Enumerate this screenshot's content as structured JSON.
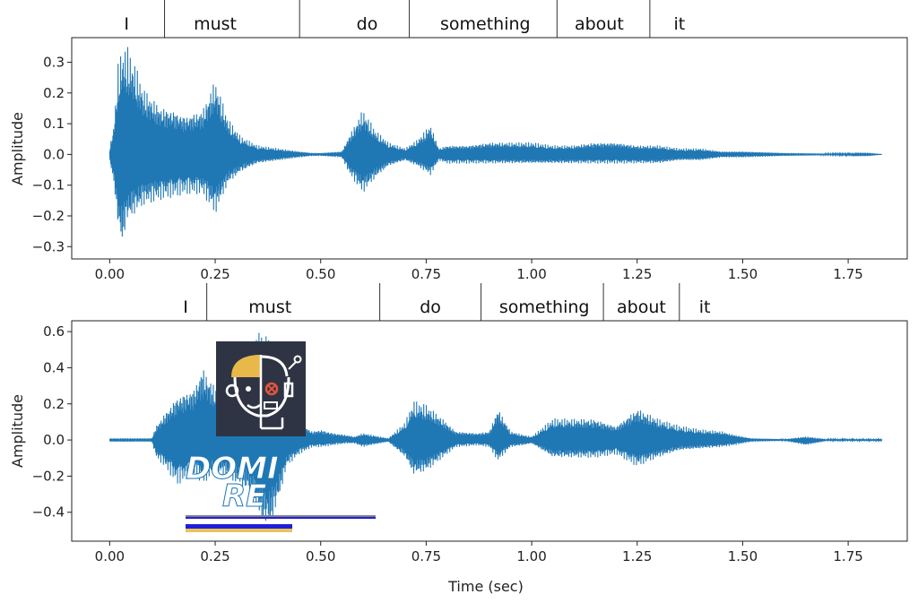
{
  "chart_data": [
    {
      "type": "line",
      "panel": "top",
      "xlabel": "",
      "ylabel": "Amplitude",
      "xlim": [
        -0.09,
        1.89
      ],
      "ylim": [
        -0.34,
        0.38
      ],
      "xticks": [
        0.0,
        0.25,
        0.5,
        0.75,
        1.0,
        1.25,
        1.5,
        1.75
      ],
      "xtick_labels": [
        "0.00",
        "0.25",
        "0.50",
        "0.75",
        "1.00",
        "1.25",
        "1.50",
        "1.75"
      ],
      "yticks": [
        -0.3,
        -0.2,
        -0.1,
        0.0,
        0.1,
        0.2,
        0.3
      ],
      "ytick_labels": [
        "−0.3",
        "−0.2",
        "−0.1",
        "0.0",
        "0.1",
        "0.2",
        "0.3"
      ],
      "color": "#1f77b4",
      "grid": false,
      "word_boundaries": [
        0.13,
        0.45,
        0.71,
        1.06,
        1.28
      ],
      "words": [
        {
          "text": "I",
          "center": 0.04
        },
        {
          "text": "must",
          "center": 0.25
        },
        {
          "text": "do",
          "center": 0.61
        },
        {
          "text": "something",
          "center": 0.89
        },
        {
          "text": "about",
          "center": 1.16
        },
        {
          "text": "it",
          "center": 1.35
        }
      ],
      "envelope": {
        "x": [
          0.0,
          0.01,
          0.02,
          0.03,
          0.04,
          0.06,
          0.08,
          0.1,
          0.12,
          0.15,
          0.18,
          0.22,
          0.25,
          0.28,
          0.31,
          0.35,
          0.4,
          0.45,
          0.48,
          0.5,
          0.55,
          0.57,
          0.6,
          0.63,
          0.66,
          0.7,
          0.73,
          0.76,
          0.78,
          0.8,
          0.85,
          0.9,
          0.95,
          1.0,
          1.05,
          1.1,
          1.15,
          1.2,
          1.25,
          1.3,
          1.35,
          1.4,
          1.45,
          1.5,
          1.6,
          1.7,
          1.8,
          1.83
        ],
        "upper": [
          0.02,
          0.1,
          0.3,
          0.35,
          0.36,
          0.3,
          0.22,
          0.19,
          0.16,
          0.15,
          0.13,
          0.15,
          0.25,
          0.12,
          0.06,
          0.03,
          0.02,
          0.01,
          0.005,
          0.005,
          0.01,
          0.07,
          0.15,
          0.08,
          0.04,
          0.02,
          0.05,
          0.1,
          0.02,
          0.03,
          0.03,
          0.04,
          0.04,
          0.04,
          0.03,
          0.03,
          0.04,
          0.04,
          0.03,
          0.03,
          0.02,
          0.02,
          0.01,
          0.01,
          0.005,
          0.003,
          0.002,
          0.0
        ],
        "lower": [
          -0.02,
          -0.1,
          -0.25,
          -0.31,
          -0.23,
          -0.2,
          -0.17,
          -0.16,
          -0.15,
          -0.14,
          -0.13,
          -0.13,
          -0.2,
          -0.1,
          -0.06,
          -0.03,
          -0.02,
          -0.01,
          -0.005,
          -0.005,
          -0.01,
          -0.07,
          -0.13,
          -0.08,
          -0.04,
          -0.02,
          -0.04,
          -0.07,
          -0.02,
          -0.03,
          -0.03,
          -0.03,
          -0.03,
          -0.03,
          -0.03,
          -0.03,
          -0.03,
          -0.03,
          -0.03,
          -0.03,
          -0.02,
          -0.02,
          -0.01,
          -0.01,
          -0.005,
          -0.003,
          -0.002,
          0.0
        ]
      }
    },
    {
      "type": "line",
      "panel": "bottom",
      "xlabel": "Time (sec)",
      "ylabel": "Amplitude",
      "xlim": [
        -0.09,
        1.89
      ],
      "ylim": [
        -0.56,
        0.66
      ],
      "xticks": [
        0.0,
        0.25,
        0.5,
        0.75,
        1.0,
        1.25,
        1.5,
        1.75
      ],
      "xtick_labels": [
        "0.00",
        "0.25",
        "0.50",
        "0.75",
        "1.00",
        "1.25",
        "1.50",
        "1.75"
      ],
      "yticks": [
        -0.4,
        -0.2,
        0.0,
        0.2,
        0.4,
        0.6
      ],
      "ytick_labels": [
        "−0.4",
        "−0.2",
        "0.0",
        "0.2",
        "0.4",
        "0.6"
      ],
      "color": "#1f77b4",
      "grid": false,
      "word_boundaries": [
        0.23,
        0.64,
        0.88,
        1.17,
        1.35
      ],
      "words": [
        {
          "text": "I",
          "center": 0.18
        },
        {
          "text": "must",
          "center": 0.38
        },
        {
          "text": "do",
          "center": 0.76
        },
        {
          "text": "something",
          "center": 1.03
        },
        {
          "text": "about",
          "center": 1.26
        },
        {
          "text": "it",
          "center": 1.41
        }
      ],
      "envelope": {
        "x": [
          0.0,
          0.05,
          0.1,
          0.11,
          0.13,
          0.16,
          0.2,
          0.22,
          0.25,
          0.28,
          0.3,
          0.33,
          0.36,
          0.38,
          0.4,
          0.42,
          0.45,
          0.48,
          0.5,
          0.53,
          0.56,
          0.58,
          0.6,
          0.64,
          0.66,
          0.7,
          0.72,
          0.75,
          0.79,
          0.82,
          0.87,
          0.9,
          0.92,
          0.95,
          0.98,
          1.0,
          1.05,
          1.1,
          1.15,
          1.2,
          1.25,
          1.3,
          1.35,
          1.4,
          1.45,
          1.48,
          1.52,
          1.6,
          1.65,
          1.7,
          1.75,
          1.83
        ],
        "upper": [
          0.01,
          0.01,
          0.01,
          0.08,
          0.15,
          0.25,
          0.3,
          0.42,
          0.3,
          0.35,
          0.4,
          0.5,
          0.62,
          0.55,
          0.45,
          0.2,
          0.1,
          0.05,
          0.06,
          0.04,
          0.03,
          0.02,
          0.04,
          0.02,
          0.01,
          0.1,
          0.22,
          0.2,
          0.12,
          0.05,
          0.04,
          0.05,
          0.18,
          0.05,
          0.03,
          0.02,
          0.12,
          0.12,
          0.12,
          0.08,
          0.18,
          0.12,
          0.08,
          0.06,
          0.05,
          0.03,
          0.01,
          0.005,
          0.02,
          0.005,
          0.005,
          0.005
        ],
        "lower": [
          -0.01,
          -0.01,
          -0.01,
          -0.1,
          -0.15,
          -0.25,
          -0.2,
          -0.25,
          -0.18,
          -0.22,
          -0.25,
          -0.3,
          -0.48,
          -0.5,
          -0.35,
          -0.15,
          -0.08,
          -0.04,
          -0.04,
          -0.03,
          -0.02,
          -0.02,
          -0.04,
          -0.02,
          -0.01,
          -0.1,
          -0.2,
          -0.18,
          -0.1,
          -0.04,
          -0.03,
          -0.04,
          -0.12,
          -0.04,
          -0.03,
          -0.02,
          -0.1,
          -0.1,
          -0.1,
          -0.08,
          -0.15,
          -0.1,
          -0.06,
          -0.05,
          -0.04,
          -0.03,
          -0.01,
          -0.005,
          -0.03,
          -0.005,
          -0.005,
          -0.005
        ]
      }
    }
  ],
  "watermark": {
    "logo_icon": "robot-human-face-icon",
    "text": "DOMI",
    "text2": "RE",
    "bar_colors": [
      "#808080",
      "#1f1fdb",
      "#e8c55a"
    ]
  }
}
